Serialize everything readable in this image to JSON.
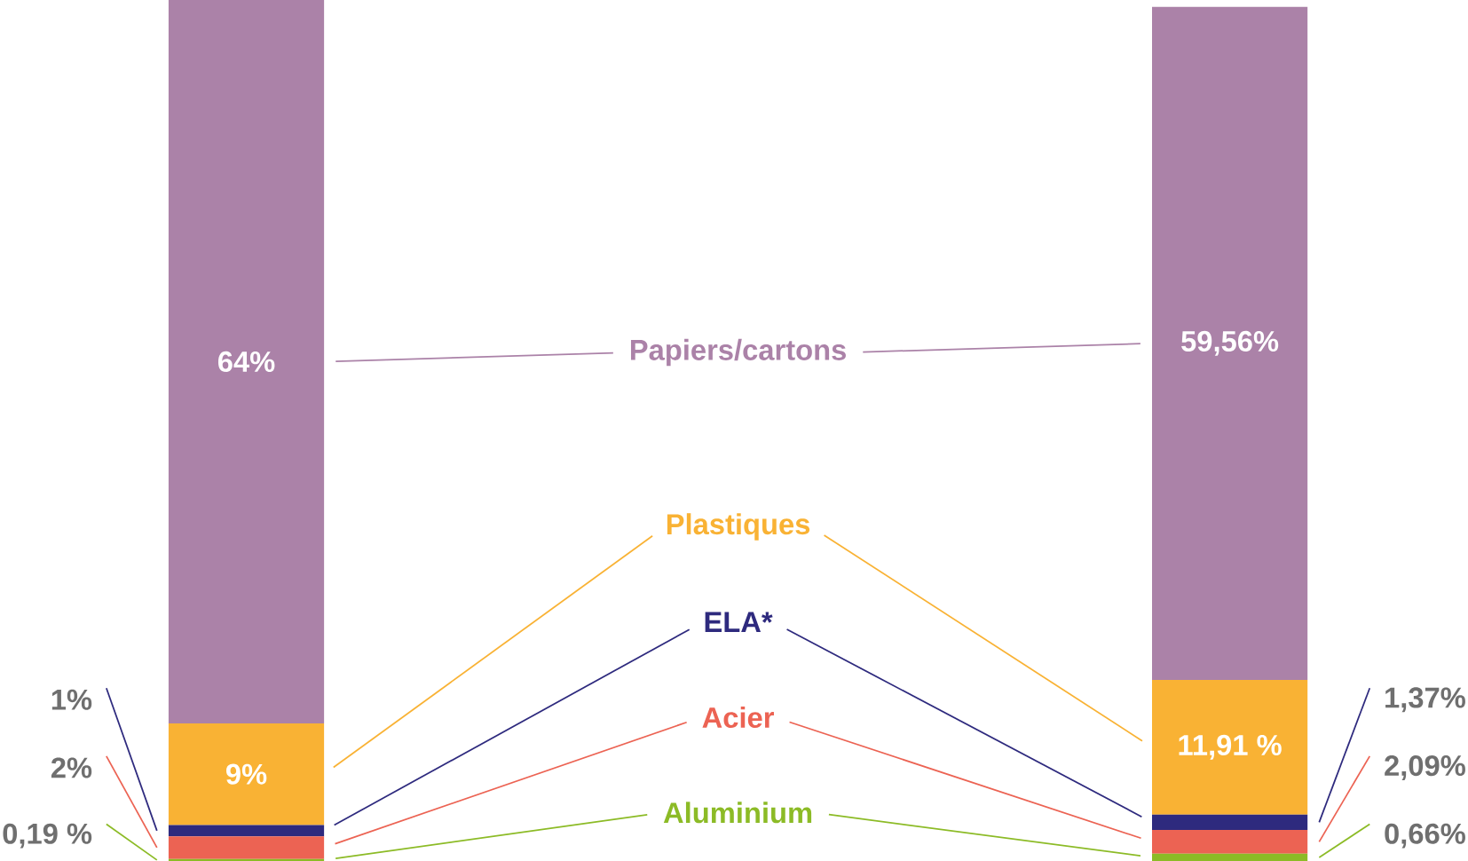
{
  "chart_data": {
    "type": "bar",
    "stacked": true,
    "categories": [
      null,
      null
    ],
    "series": [
      {
        "name": "Aluminium",
        "color": "#8cbb26",
        "values": [
          0.19,
          0.66
        ],
        "value_labels": [
          "0,19 %",
          "0,66%"
        ]
      },
      {
        "name": "Acier",
        "color": "#ec6353",
        "values": [
          2,
          2.09
        ],
        "value_labels": [
          "2%",
          "2,09%"
        ]
      },
      {
        "name": "ELA*",
        "color": "#2e2a7e",
        "values": [
          1,
          1.37
        ],
        "value_labels": [
          "1%",
          "1,37%"
        ]
      },
      {
        "name": "Plastiques",
        "color": "#f9b234",
        "values": [
          9,
          11.91
        ],
        "value_labels": [
          "9%",
          "11,91 %"
        ]
      },
      {
        "name": "Papiers/cartons",
        "color": "#ab82a8",
        "values": [
          64,
          59.56
        ],
        "value_labels": [
          "64%",
          "59,56%"
        ]
      }
    ]
  }
}
